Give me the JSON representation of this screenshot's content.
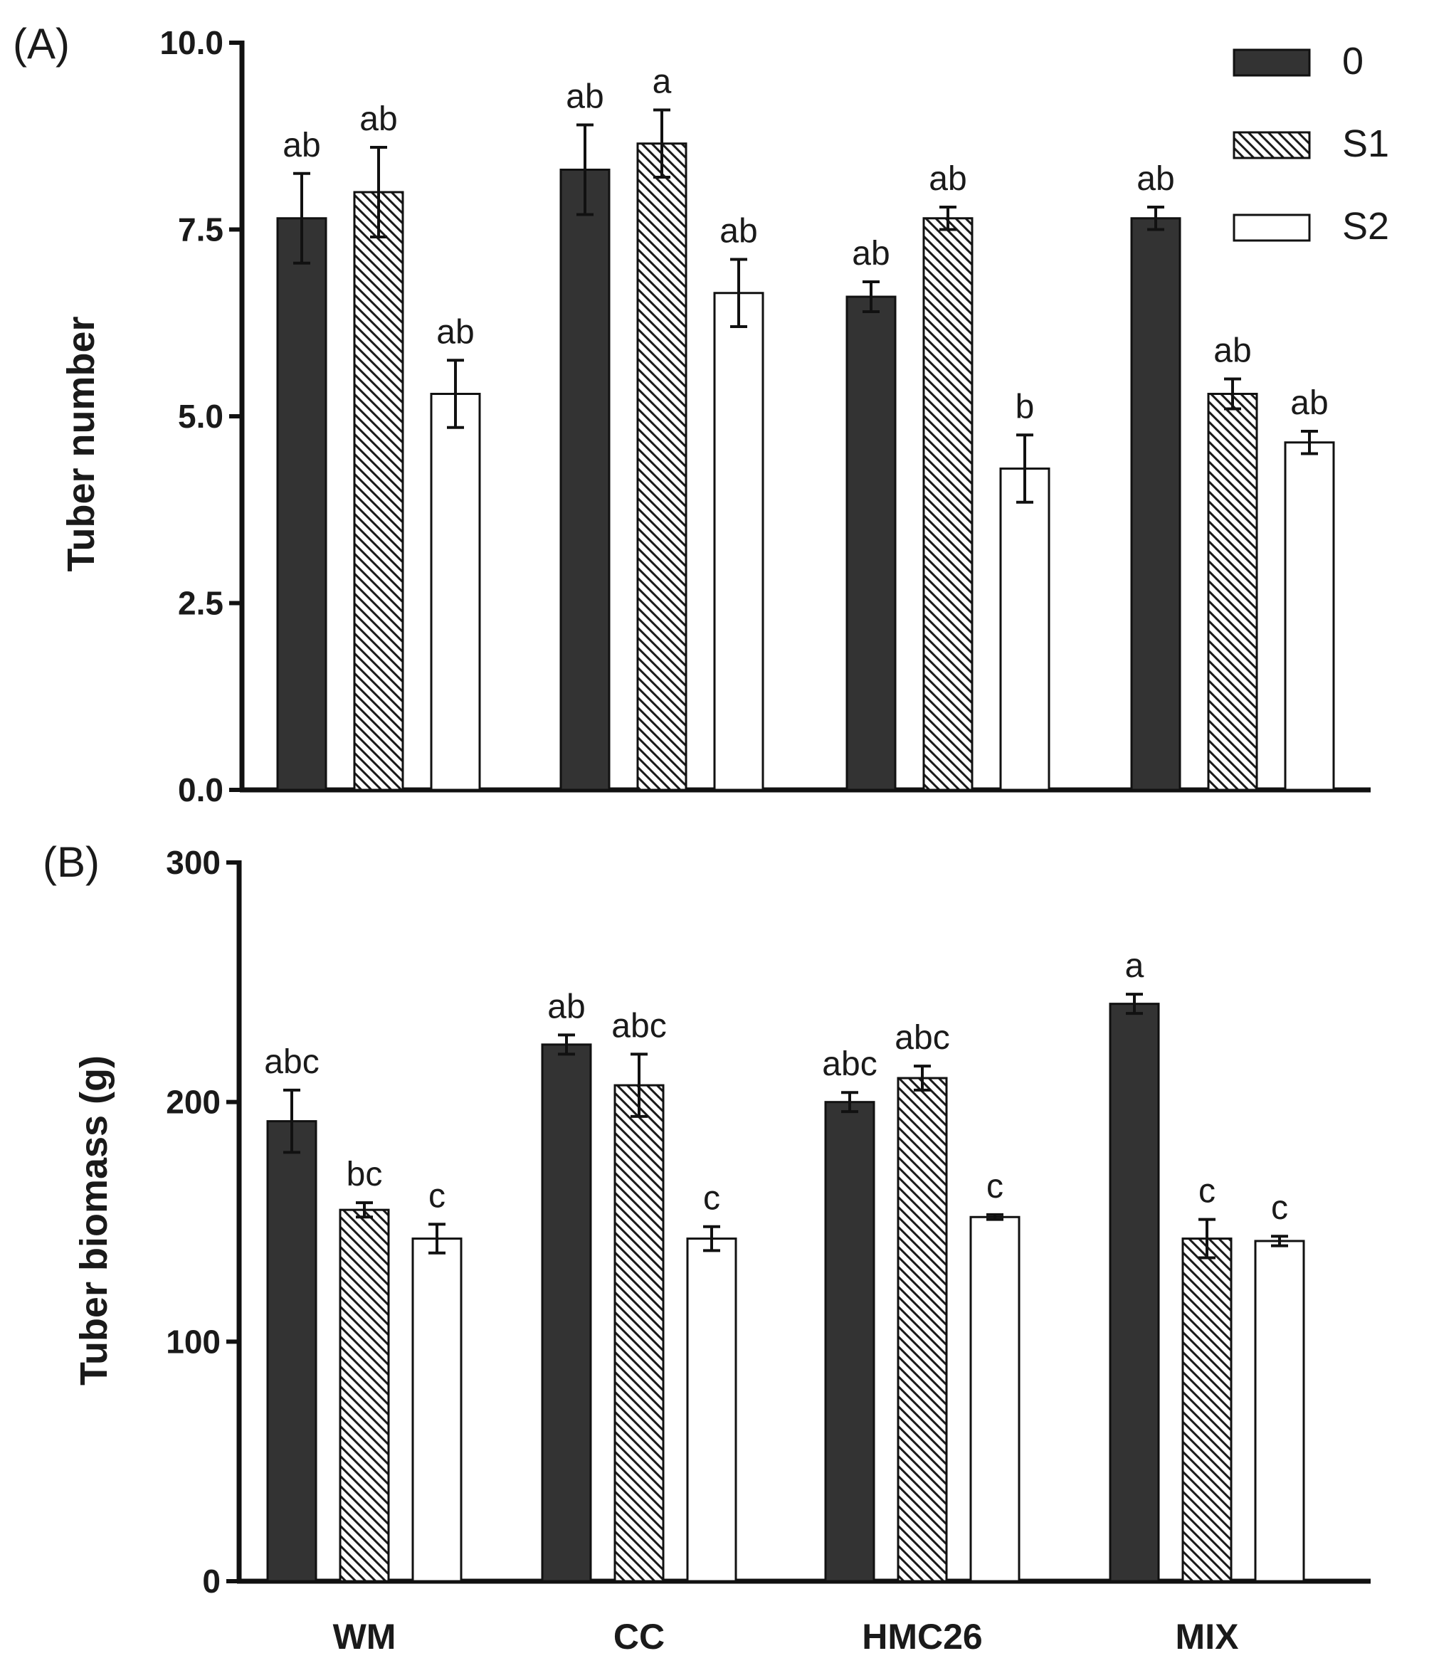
{
  "chart_data": [
    {
      "type": "bar",
      "panel_label": "(A)",
      "ylabel": "Tuber number",
      "ylim": [
        0,
        10
      ],
      "yticks": [
        "0.0",
        "2.5",
        "5.0",
        "7.5",
        "10.0"
      ],
      "categories": [
        "WM",
        "CC",
        "HMC26",
        "MIX"
      ],
      "show_category_labels": false,
      "legend": {
        "placement": "top-right",
        "entries": [
          "0",
          "S1",
          "S2"
        ]
      },
      "series": [
        {
          "name": "0",
          "color": "#333333",
          "pattern": "solid",
          "values": [
            7.65,
            8.3,
            6.6,
            7.65
          ],
          "errors": [
            0.6,
            0.6,
            0.2,
            0.15
          ],
          "labels": [
            "ab",
            "ab",
            "ab",
            "ab"
          ]
        },
        {
          "name": "S1",
          "color": "#ffffff",
          "pattern": "hatch",
          "values": [
            8.0,
            8.65,
            7.65,
            5.3
          ],
          "errors": [
            0.6,
            0.45,
            0.15,
            0.2
          ],
          "labels": [
            "ab",
            "a",
            "ab",
            "ab"
          ]
        },
        {
          "name": "S2",
          "color": "#ffffff",
          "pattern": "open",
          "values": [
            5.3,
            6.65,
            4.3,
            4.65
          ],
          "errors": [
            0.45,
            0.45,
            0.45,
            0.15
          ],
          "labels": [
            "ab",
            "ab",
            "b",
            "ab"
          ]
        }
      ]
    },
    {
      "type": "bar",
      "panel_label": "(B)",
      "ylabel": "Tuber biomass (g)",
      "ylim": [
        0,
        300
      ],
      "yticks": [
        "0",
        "100",
        "200",
        "300"
      ],
      "categories": [
        "WM",
        "CC",
        "HMC26",
        "MIX"
      ],
      "show_category_labels": true,
      "series": [
        {
          "name": "0",
          "color": "#333333",
          "pattern": "solid",
          "values": [
            192,
            224,
            200,
            241
          ],
          "errors": [
            13,
            4,
            4,
            4
          ],
          "labels": [
            "abc",
            "ab",
            "abc",
            "a"
          ]
        },
        {
          "name": "S1",
          "color": "#ffffff",
          "pattern": "hatch",
          "values": [
            155,
            207,
            210,
            143
          ],
          "errors": [
            3,
            13,
            5,
            8
          ],
          "labels": [
            "bc",
            "abc",
            "abc",
            "c"
          ]
        },
        {
          "name": "S2",
          "color": "#ffffff",
          "pattern": "open",
          "values": [
            143,
            143,
            152,
            142
          ],
          "errors": [
            6,
            5,
            1,
            2
          ],
          "labels": [
            "c",
            "c",
            "c",
            "c"
          ]
        }
      ]
    }
  ]
}
